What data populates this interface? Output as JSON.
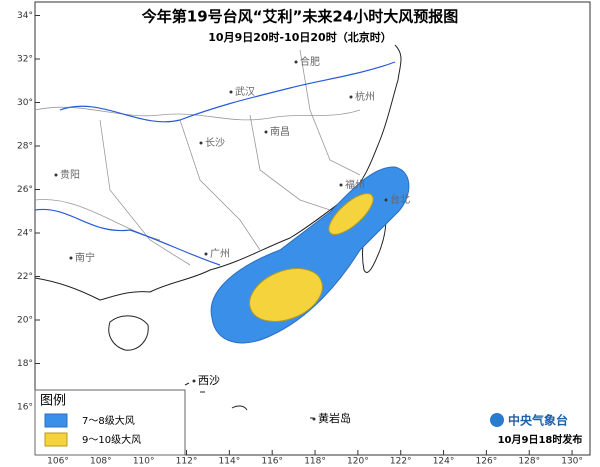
{
  "header": {
    "title": "今年第19号台风“艾利”未来24小时大风预报图",
    "subtitle": "10月9日20时-10日20时（北京时）"
  },
  "map": {
    "xticks": [
      {
        "value": 106,
        "label": "106°"
      },
      {
        "value": 108,
        "label": "108°"
      },
      {
        "value": 110,
        "label": "110°"
      },
      {
        "value": 112,
        "label": "112°"
      },
      {
        "value": 114,
        "label": "114°"
      },
      {
        "value": 116,
        "label": "116°"
      },
      {
        "value": 118,
        "label": "118°"
      },
      {
        "value": 120,
        "label": "120°"
      },
      {
        "value": 122,
        "label": "122°"
      },
      {
        "value": 124,
        "label": "124°"
      },
      {
        "value": 126,
        "label": "126°"
      },
      {
        "value": 128,
        "label": "128°"
      },
      {
        "value": 130,
        "label": "130°"
      }
    ],
    "yticks": [
      {
        "value": 16,
        "label": "16°"
      },
      {
        "value": 18,
        "label": "18°"
      },
      {
        "value": 20,
        "label": "20°"
      },
      {
        "value": 22,
        "label": "22°"
      },
      {
        "value": 24,
        "label": "24°"
      },
      {
        "value": 26,
        "label": "26°"
      },
      {
        "value": 28,
        "label": "28°"
      },
      {
        "value": 30,
        "label": "30°"
      },
      {
        "value": 32,
        "label": "32°"
      },
      {
        "value": 34,
        "label": "34°"
      }
    ],
    "cities": [
      "合肥",
      "武汉",
      "杭州",
      "长沙",
      "南昌",
      "福州",
      "贵阳",
      "南宁",
      "广州",
      "台北",
      "西沙",
      "黄岩岛"
    ]
  },
  "legend": {
    "title": "图例",
    "items": [
      "7～8级大风",
      "9～10级大风"
    ]
  },
  "footer": {
    "agency": "中央气象台",
    "issued": "10月9日18时发布"
  }
}
